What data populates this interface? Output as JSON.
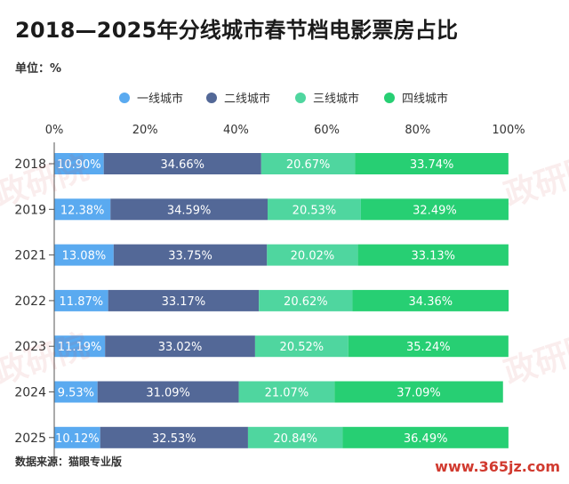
{
  "title": "2018—2025年分线城市春节档电影票房占比",
  "unit_label": "单位：%",
  "source": "数据来源：猫眼专业版",
  "site_mark": "www.365jz.com",
  "watermark": "政研院",
  "colors": {
    "tier1": "#5aaaf0",
    "tier2": "#536897",
    "tier3": "#4fd69f",
    "tier4": "#27cf73"
  },
  "chart_data": {
    "type": "bar",
    "orientation": "horizontal",
    "stacked": true,
    "categories": [
      "2018",
      "2019",
      "2021",
      "2022",
      "2023",
      "2024",
      "2025"
    ],
    "series": [
      {
        "name": "一线城市",
        "values": [
          10.9,
          12.38,
          13.08,
          11.87,
          11.19,
          9.53,
          10.12
        ],
        "labels": [
          "10.90%",
          "12.38%",
          "13.08%",
          "11.87%",
          "11.19%",
          "9.53%",
          "10.12%"
        ]
      },
      {
        "name": "二线城市",
        "values": [
          34.66,
          34.59,
          33.75,
          33.17,
          33.02,
          31.09,
          32.53
        ],
        "labels": [
          "34.66%",
          "34.59%",
          "33.75%",
          "33.17%",
          "33.02%",
          "31.09%",
          "32.53%"
        ]
      },
      {
        "name": "三线城市",
        "values": [
          20.67,
          20.53,
          20.02,
          20.62,
          20.52,
          21.07,
          20.84
        ],
        "labels": [
          "20.67%",
          "20.53%",
          "20.02%",
          "20.62%",
          "20.52%",
          "21.07%",
          "20.84%"
        ]
      },
      {
        "name": "四线城市",
        "values": [
          33.74,
          32.49,
          33.13,
          34.36,
          35.24,
          37.09,
          36.49
        ],
        "labels": [
          "33.74%",
          "32.49%",
          "33.13%",
          "34.36%",
          "35.24%",
          "37.09%",
          "36.49%"
        ]
      }
    ],
    "xlim": [
      0,
      100
    ],
    "x_ticks": [
      "0%",
      "20%",
      "40%",
      "60%",
      "80%",
      "100%"
    ],
    "grid": false,
    "legend_position": "top"
  }
}
